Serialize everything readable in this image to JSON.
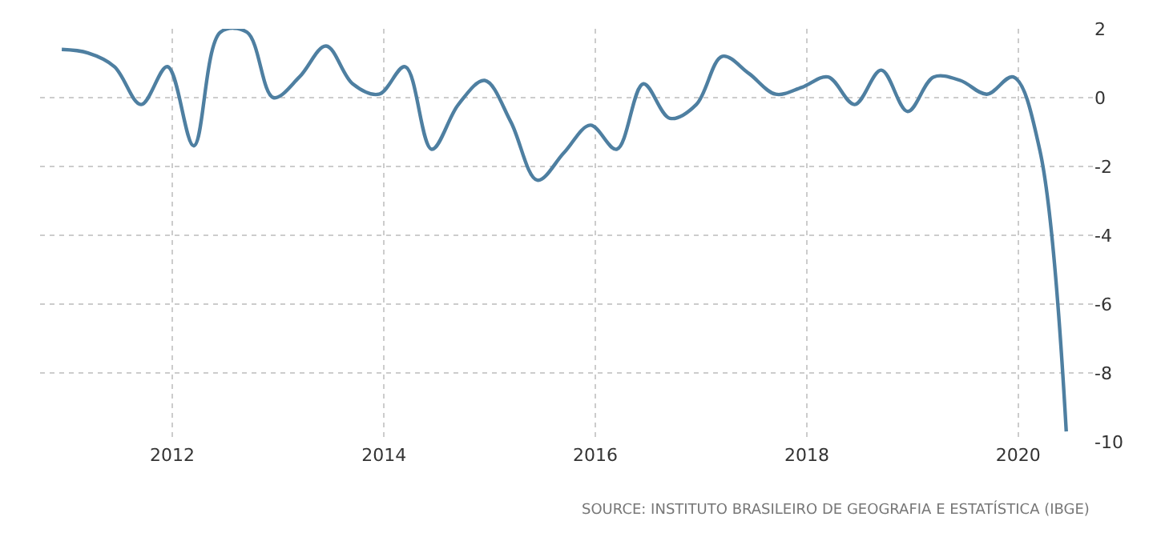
{
  "chart_data": {
    "type": "line",
    "x": [
      "2010-12",
      "2011-03",
      "2011-06",
      "2011-09",
      "2011-12",
      "2012-03",
      "2012-06",
      "2012-09",
      "2012-12",
      "2013-03",
      "2013-06",
      "2013-09",
      "2013-12",
      "2014-03",
      "2014-06",
      "2014-09",
      "2014-12",
      "2015-03",
      "2015-06",
      "2015-09",
      "2015-12",
      "2016-03",
      "2016-06",
      "2016-09",
      "2016-12",
      "2017-03",
      "2017-06",
      "2017-09",
      "2017-12",
      "2018-03",
      "2018-06",
      "2018-09",
      "2018-12",
      "2019-03",
      "2019-06",
      "2019-09",
      "2019-12",
      "2020-03",
      "2020-06"
    ],
    "series": [
      {
        "color": "#4e7fa1",
        "values": [
          1.4,
          1.3,
          0.9,
          -0.2,
          0.9,
          -1.4,
          1.9,
          1.9,
          0.0,
          0.6,
          1.5,
          0.4,
          0.1,
          0.9,
          -1.5,
          -0.2,
          0.5,
          -0.7,
          -2.4,
          -1.6,
          -0.8,
          -1.5,
          0.4,
          -0.6,
          -0.2,
          1.2,
          0.7,
          0.1,
          0.3,
          0.6,
          -0.2,
          0.8,
          -0.4,
          0.6,
          0.5,
          0.1,
          0.6,
          -1.5,
          -9.7
        ]
      }
    ],
    "xlim": [
      "2010-10-01",
      "2020-09-15"
    ],
    "xticks": [
      {
        "value": "2012-01-01",
        "label": "2012"
      },
      {
        "value": "2014-01-01",
        "label": "2014"
      },
      {
        "value": "2016-01-01",
        "label": "2016"
      },
      {
        "value": "2018-01-01",
        "label": "2018"
      },
      {
        "value": "2020-01-01",
        "label": "2020"
      }
    ],
    "ylim": [
      -10,
      2
    ],
    "yticks": [
      -10,
      -8,
      -6,
      -4,
      -2,
      0,
      2
    ],
    "grid": true,
    "marker": "none",
    "line_style": "solid",
    "annotations": [
      "SOURCE: INSTITUTO BRASILEIRO DE GEOGRAFIA E ESTATÍSTICA (IBGE)"
    ]
  }
}
